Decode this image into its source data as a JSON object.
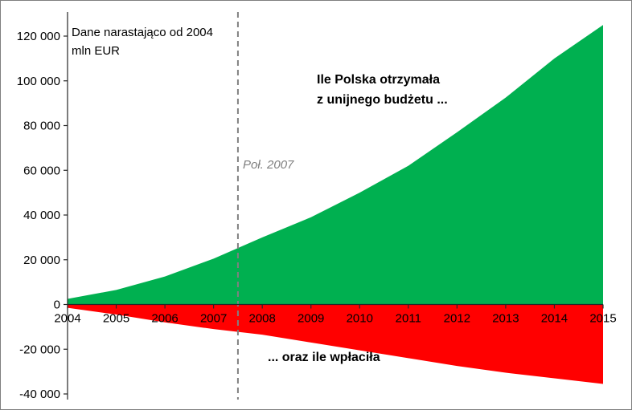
{
  "annotations": {
    "note_line1": "Dane narastająco od 2004",
    "note_line2": "mln EUR",
    "received_line1": "Ile Polska otrzymała",
    "received_line2": "z unijnego budżetu ...",
    "vline_label": "Poł. 2007",
    "paid_label": "... oraz ile wpłaciła"
  },
  "colors": {
    "received_area": "#00B050",
    "paid_area": "#FF0000",
    "dashed_line": "#808080",
    "axis": "#262626",
    "background": "#ffffff",
    "frame_border": "#7f7f7f"
  },
  "chart_data": {
    "type": "area",
    "title": "",
    "xlabel": "",
    "ylabel": "mln EUR (dane narastająco od 2004)",
    "grid": false,
    "legend_position": "none (inline annotations)",
    "categories": [
      2004,
      2005,
      2006,
      2007,
      2008,
      2009,
      2010,
      2011,
      2012,
      2013,
      2014,
      2015
    ],
    "series": [
      {
        "name": "Ile Polska otrzymała z unijnego budżetu ...",
        "color": "#00B050",
        "values": [
          2500,
          6500,
          12500,
          20500,
          30000,
          39000,
          50000,
          62000,
          77000,
          92500,
          110000,
          125000
        ]
      },
      {
        "name": "... oraz ile wpłaciła",
        "color": "#FF0000",
        "values": [
          -1500,
          -4500,
          -8000,
          -11000,
          -13500,
          -17000,
          -20500,
          -24000,
          -27500,
          -30500,
          -33000,
          -35500
        ]
      }
    ],
    "ylim": [
      -40000,
      130000
    ],
    "yticks": {
      "values": [
        120000,
        100000,
        80000,
        60000,
        40000,
        20000,
        0,
        -20000,
        -40000
      ],
      "labels": [
        "120 000",
        "100 000",
        "80 000",
        "60 000",
        "40 000",
        "20 000",
        "0",
        "-20 000",
        "-40 000"
      ]
    },
    "vline": {
      "x": 2007.5,
      "label": "Poł. 2007"
    }
  }
}
